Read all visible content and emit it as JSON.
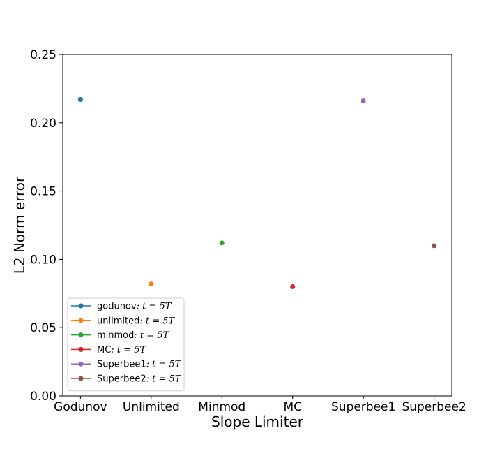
{
  "chart_data": {
    "type": "scatter",
    "xlabel": "Slope Limiter",
    "ylabel": "L2 Norm error",
    "categories": [
      "Godunov",
      "Unlimited",
      "Minmod",
      "MC",
      "Superbee1",
      "Superbee2"
    ],
    "ylim": [
      0.0,
      0.25
    ],
    "yticks": [
      "0.00",
      "0.05",
      "0.10",
      "0.15",
      "0.20",
      "0.25"
    ],
    "ytick_values": [
      0.0,
      0.05,
      0.1,
      0.15,
      0.2,
      0.25
    ],
    "grid": false,
    "legend_position": "lower-left",
    "series": [
      {
        "name": "godunov",
        "time_label": ": t = 5T",
        "category": "Godunov",
        "value": 0.217,
        "color": "#1f77b4"
      },
      {
        "name": "unlimited",
        "time_label": ": t = 5T",
        "category": "Unlimited",
        "value": 0.082,
        "color": "#ff7f0e"
      },
      {
        "name": "minmod",
        "time_label": ": t = 5T",
        "category": "Minmod",
        "value": 0.112,
        "color": "#2ca02c"
      },
      {
        "name": "MC",
        "time_label": ": t = 5T",
        "category": "MC",
        "value": 0.08,
        "color": "#d62728"
      },
      {
        "name": "Superbee1",
        "time_label": ": t = 5T",
        "category": "Superbee1",
        "value": 0.216,
        "color": "#9467bd"
      },
      {
        "name": "Superbee2",
        "time_label": ": t = 5T",
        "category": "Superbee2",
        "value": 0.11,
        "color": "#8c564b"
      }
    ]
  }
}
